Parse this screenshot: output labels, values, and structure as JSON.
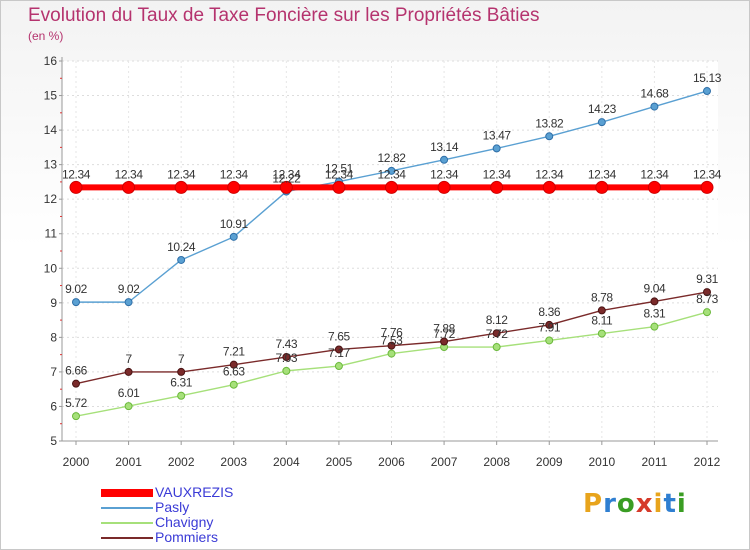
{
  "title": "Evolution du Taux de Taxe Foncière sur les Propriétés Bâties",
  "unit_label": "(en %)",
  "logo": {
    "text": "Proxiti",
    "colors": [
      "#e8a41c",
      "#2f7fd1",
      "#3a9d23",
      "#d63a2a",
      "#e8a41c",
      "#2f7fd1",
      "#3a9d23"
    ]
  },
  "chart_data": {
    "type": "line",
    "title": "Evolution du Taux de Taxe Foncière sur les Propriétés Bâties",
    "ylabel": "(en %)",
    "xlabel": "",
    "ylim": [
      5,
      16
    ],
    "yticks": [
      "5",
      "6",
      "7",
      "8",
      "9",
      "10",
      "11",
      "12",
      "13",
      "14",
      "15",
      "16"
    ],
    "grid": true,
    "legend_position": "bottom-left",
    "categories": [
      "2000",
      "2001",
      "2002",
      "2003",
      "2004",
      "2005",
      "2006",
      "2007",
      "2008",
      "2009",
      "2010",
      "2011",
      "2012"
    ],
    "series": [
      {
        "name": "VAUXREZIS",
        "color": "#ff0000",
        "width": 6,
        "marker": 6,
        "values": [
          12.34,
          12.34,
          12.34,
          12.34,
          12.34,
          12.34,
          12.34,
          12.34,
          12.34,
          12.34,
          12.34,
          12.34,
          12.34
        ],
        "labels": [
          "12.34",
          "12.34",
          "12.34",
          "12.34",
          "12.34",
          "12.34",
          "12.34",
          "12.34",
          "12.34",
          "12.34",
          "12.34",
          "12.34",
          "12.34"
        ]
      },
      {
        "name": "Pasly",
        "color": "#5aa0d2",
        "width": 1.4,
        "marker": 3.5,
        "values": [
          9.02,
          9.02,
          10.24,
          10.91,
          12.22,
          12.51,
          12.82,
          13.14,
          13.47,
          13.82,
          14.23,
          14.68,
          15.13
        ],
        "labels": [
          "9.02",
          "9.02",
          "10.24",
          "10.91",
          "12.22",
          "12.51",
          "12.82",
          "13.14",
          "13.47",
          "13.82",
          "14.23",
          "14.68",
          "15.13"
        ]
      },
      {
        "name": "Chavigny",
        "color": "#a6e07a",
        "width": 1.4,
        "marker": 3.5,
        "values": [
          5.72,
          6.01,
          6.31,
          6.63,
          7.03,
          7.17,
          7.53,
          7.72,
          7.72,
          7.91,
          8.11,
          8.31,
          8.73
        ],
        "labels": [
          "5.72",
          "6.01",
          "6.31",
          "6.63",
          "7.03",
          "7.17",
          "7.53",
          "7.72",
          "7.72",
          "7.91",
          "8.11",
          "8.31",
          "8.73"
        ]
      },
      {
        "name": "Pommiers",
        "color": "#7a2a2a",
        "width": 1.4,
        "marker": 3.5,
        "values": [
          6.66,
          7,
          7,
          7.21,
          7.43,
          7.65,
          7.76,
          7.88,
          8.12,
          8.36,
          8.78,
          9.04,
          9.31
        ],
        "labels": [
          "6.66",
          "7",
          "7",
          "7.21",
          "7.43",
          "7.65",
          "7.76",
          "7.88",
          "8.12",
          "8.36",
          "8.78",
          "9.04",
          "9.31"
        ]
      }
    ]
  }
}
